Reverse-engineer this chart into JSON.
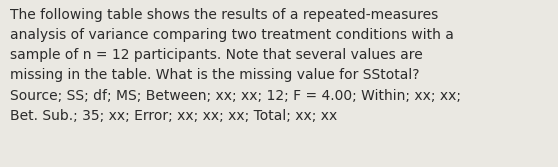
{
  "text": "The following table shows the results of a repeated-measures\nanalysis of variance comparing two treatment conditions with a\nsample of n = 12 participants. Note that several values are\nmissing in the table. What is the missing value for SStotal?\nSource; SS; df; MS; Between; xx; xx; 12; F = 4.00; Within; xx; xx;\nBet. Sub.; 35; xx; Error; xx; xx; xx; Total; xx; xx",
  "background_color": "#eae8e2",
  "text_color": "#2b2b2b",
  "font_size": 10.0,
  "fig_width": 5.58,
  "fig_height": 1.67,
  "dpi": 100,
  "fontweight": "normal",
  "fontfamily": "DejaVu Sans",
  "linespacing": 1.55
}
